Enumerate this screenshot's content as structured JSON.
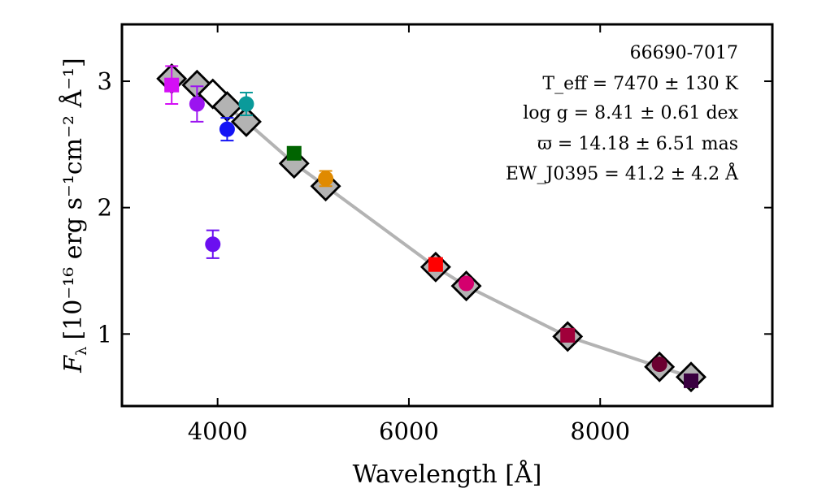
{
  "chart_data": {
    "type": "scatter",
    "xlabel": "Wavelength [Å]",
    "ylabel": "F",
    "ylabel_sub": "λ",
    "ylabel_unit": "[10⁻¹⁶ erg s⁻¹cm⁻² Å⁻¹]",
    "xlim": [
      3000,
      9800
    ],
    "ylim": [
      0.43,
      3.45
    ],
    "xticks": [
      4000,
      6000,
      8000
    ],
    "xtick_labels": [
      "4000",
      "6000",
      "8000"
    ],
    "yticks": [
      1,
      2,
      3
    ],
    "ytick_labels": [
      "1",
      "2",
      "3"
    ],
    "grid": false,
    "annotations": {
      "object_id": "66690-7017",
      "teff": "T_eff = 7470 ± 130 K",
      "logg": "log g = 8.41 ± 0.61 dex",
      "parallax": "ϖ = 14.18 ± 6.51 mas",
      "ew": "EW_J0395 = 41.2 ± 4.2 Å"
    },
    "model_curve": {
      "color": "#b3b3b3",
      "x": [
        3520,
        3785,
        3950,
        4100,
        4300,
        4800,
        5130,
        6280,
        6600,
        7660,
        8620,
        8950
      ],
      "y": [
        3.02,
        2.97,
        2.9,
        2.8,
        2.68,
        2.35,
        2.17,
        1.53,
        1.38,
        0.98,
        0.74,
        0.66
      ]
    },
    "model_points": {
      "x": [
        3520,
        3785,
        3950,
        4100,
        4300,
        4800,
        5130,
        6280,
        6600,
        7660,
        8620,
        8950
      ],
      "y": [
        3.02,
        2.97,
        2.9,
        2.8,
        2.68,
        2.35,
        2.17,
        1.53,
        1.38,
        0.98,
        0.74,
        0.66
      ],
      "filled": [
        true,
        true,
        false,
        true,
        true,
        true,
        true,
        true,
        true,
        true,
        true,
        true
      ]
    },
    "observed": [
      {
        "x": 3520,
        "y": 2.97,
        "err": 0.15,
        "marker": "square",
        "color": "#d40ff5"
      },
      {
        "x": 3785,
        "y": 2.82,
        "err": 0.14,
        "marker": "circle",
        "color": "#9b14f0"
      },
      {
        "x": 3950,
        "y": 1.71,
        "err": 0.11,
        "marker": "circle",
        "color": "#6b0ff0"
      },
      {
        "x": 4100,
        "y": 2.62,
        "err": 0.09,
        "marker": "circle",
        "color": "#1414f5"
      },
      {
        "x": 4300,
        "y": 2.82,
        "err": 0.09,
        "marker": "circle",
        "color": "#0a9a9a"
      },
      {
        "x": 4800,
        "y": 2.43,
        "err": 0.0,
        "marker": "square",
        "color": "#006400"
      },
      {
        "x": 5130,
        "y": 2.23,
        "err": 0.06,
        "marker": "circle",
        "color": "#e08a00"
      },
      {
        "x": 6280,
        "y": 1.55,
        "err": 0.0,
        "marker": "square",
        "color": "#ff0000"
      },
      {
        "x": 6600,
        "y": 1.4,
        "err": 0.0,
        "marker": "circle",
        "color": "#d4006e"
      },
      {
        "x": 7660,
        "y": 0.99,
        "err": 0.0,
        "marker": "square",
        "color": "#a0003a"
      },
      {
        "x": 8620,
        "y": 0.76,
        "err": 0.0,
        "marker": "circle",
        "color": "#6b0030"
      },
      {
        "x": 8950,
        "y": 0.63,
        "err": 0.0,
        "marker": "square",
        "color": "#3a0040"
      }
    ]
  }
}
